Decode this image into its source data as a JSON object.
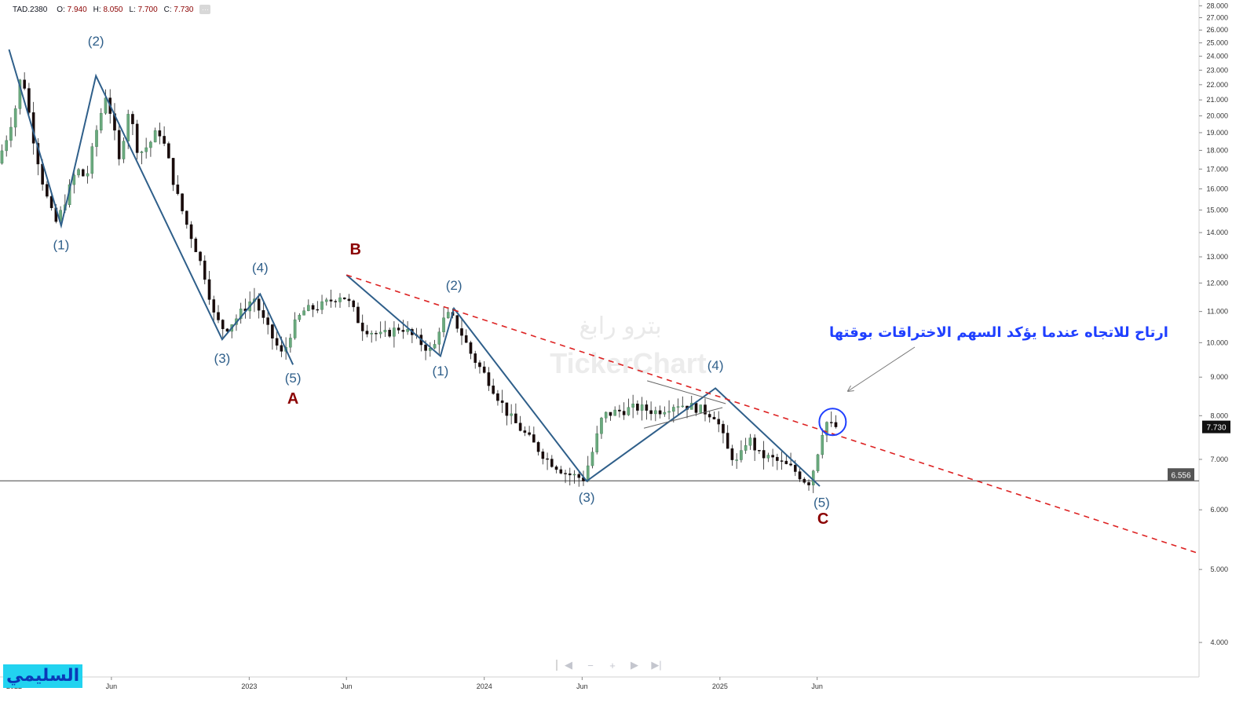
{
  "header": {
    "symbol": "TAD.2380",
    "open_label": "O:",
    "open": "7.940",
    "high_label": "H:",
    "high": "8.050",
    "low_label": "L:",
    "low": "7.700",
    "close_label": "C:",
    "close": "7.730",
    "more": "···"
  },
  "navigator": {
    "prev": "◀",
    "zoom_out": "−",
    "zoom_in": "+",
    "next": "▶",
    "end": "▶|"
  },
  "brand_badge": "السليمي",
  "watermark": {
    "arabic": "بترو رابغ",
    "latin": "TickerChart"
  },
  "annotation_text": "ارتاح للاتجاه عندما يؤكد السهم الاختراقات بوقتها",
  "colors": {
    "up": "#6aaa7e",
    "down": "#1a0a0a",
    "wave": "#2f5f8a",
    "trend": "#dd2222",
    "label": "#8b0000",
    "note": "#1f3fff"
  },
  "chart_data": {
    "type": "candlestick",
    "scale": "log",
    "ylim": [
      3.6,
      28.5
    ],
    "y_ticks": [
      "4.000",
      "5.000",
      "6.000",
      "7.000",
      "8.000",
      "9.000",
      "10.000",
      "11.000",
      "12.000",
      "13.000",
      "14.000",
      "15.000",
      "16.000",
      "17.000",
      "18.000",
      "19.000",
      "20.000",
      "21.000",
      "22.000",
      "23.000",
      "24.000",
      "25.000",
      "26.000",
      "27.000",
      "28.000"
    ],
    "x_ticks": [
      {
        "label": "2022",
        "date": "2022-01-01"
      },
      {
        "label": "Jun",
        "date": "2022-06-01"
      },
      {
        "label": "2023",
        "date": "2023-01-01"
      },
      {
        "label": "Jun",
        "date": "2023-06-01"
      },
      {
        "label": "2024",
        "date": "2024-01-01"
      },
      {
        "label": "Jun",
        "date": "2024-06-01"
      },
      {
        "label": "2025",
        "date": "2025-01-01"
      },
      {
        "label": "Jun",
        "date": "2025-06-01"
      }
    ],
    "xlim": [
      "2021-12-10",
      "2027-01-15"
    ],
    "last_price": "7.730",
    "support_level": "6.556",
    "support_value": 6.556,
    "price_path": [
      [
        "2021-12-13",
        17.3
      ],
      [
        "2021-12-28",
        18.8
      ],
      [
        "2022-01-10",
        20.5
      ],
      [
        "2022-01-20",
        23.0
      ],
      [
        "2022-02-05",
        19.0
      ],
      [
        "2022-02-20",
        16.5
      ],
      [
        "2022-03-05",
        15.0
      ],
      [
        "2022-03-15",
        14.4
      ],
      [
        "2022-03-30",
        15.6
      ],
      [
        "2022-04-15",
        17.0
      ],
      [
        "2022-04-30",
        16.5
      ],
      [
        "2022-05-15",
        19.0
      ],
      [
        "2022-05-30",
        21.3
      ],
      [
        "2022-06-08",
        20.0
      ],
      [
        "2022-06-20",
        17.4
      ],
      [
        "2022-07-05",
        20.5
      ],
      [
        "2022-07-20",
        17.8
      ],
      [
        "2022-08-05",
        18.3
      ],
      [
        "2022-08-20",
        19.2
      ],
      [
        "2022-09-01",
        18.0
      ],
      [
        "2022-09-15",
        16.0
      ],
      [
        "2022-10-01",
        14.5
      ],
      [
        "2022-10-15",
        13.5
      ],
      [
        "2022-11-01",
        12.2
      ],
      [
        "2022-11-15",
        10.8
      ],
      [
        "2022-12-01",
        10.4
      ],
      [
        "2022-12-20",
        10.8
      ],
      [
        "2023-01-15",
        11.5
      ],
      [
        "2023-02-01",
        10.6
      ],
      [
        "2023-02-20",
        9.9
      ],
      [
        "2023-03-01",
        9.6
      ],
      [
        "2023-03-15",
        10.4
      ],
      [
        "2023-04-01",
        11.0
      ],
      [
        "2023-05-01",
        11.2
      ],
      [
        "2023-06-01",
        11.6
      ],
      [
        "2023-06-15",
        11.2
      ],
      [
        "2023-07-01",
        10.5
      ],
      [
        "2023-08-01",
        10.2
      ],
      [
        "2023-09-01",
        10.5
      ],
      [
        "2023-10-01",
        10.0
      ],
      [
        "2023-10-20",
        9.7
      ],
      [
        "2023-11-01",
        10.6
      ],
      [
        "2023-11-15",
        10.9
      ],
      [
        "2023-12-01",
        10.4
      ],
      [
        "2023-12-20",
        9.6
      ],
      [
        "2024-01-15",
        8.9
      ],
      [
        "2024-02-15",
        8.0
      ],
      [
        "2024-03-15",
        7.5
      ],
      [
        "2024-04-15",
        7.0
      ],
      [
        "2024-05-15",
        6.7
      ],
      [
        "2024-06-10",
        6.6
      ],
      [
        "2024-06-25",
        7.2
      ],
      [
        "2024-07-10",
        8.0
      ],
      [
        "2024-08-01",
        8.1
      ],
      [
        "2024-09-01",
        8.2
      ],
      [
        "2024-10-01",
        8.1
      ],
      [
        "2024-11-01",
        8.3
      ],
      [
        "2024-12-01",
        8.2
      ],
      [
        "2025-01-01",
        8.0
      ],
      [
        "2025-01-20",
        7.2
      ],
      [
        "2025-02-05",
        6.9
      ],
      [
        "2025-02-20",
        7.5
      ],
      [
        "2025-03-10",
        7.1
      ],
      [
        "2025-04-01",
        7.0
      ],
      [
        "2025-05-01",
        6.8
      ],
      [
        "2025-05-25",
        6.5
      ],
      [
        "2025-06-05",
        6.9
      ],
      [
        "2025-06-15",
        7.6
      ],
      [
        "2025-06-25",
        7.9
      ],
      [
        "2025-07-01",
        7.73
      ]
    ],
    "waves": [
      {
        "name": "A",
        "points": [
          [
            "2021-12-24",
            24.5
          ],
          [
            "2022-03-15",
            14.3
          ],
          [
            "2022-05-08",
            22.6
          ],
          [
            "2022-11-20",
            10.1
          ],
          [
            "2023-01-18",
            11.6
          ],
          [
            "2023-03-10",
            9.35
          ]
        ]
      },
      {
        "name": "B-C",
        "points": [
          [
            "2023-06-01",
            12.3
          ],
          [
            "2023-10-25",
            9.6
          ],
          [
            "2023-11-15",
            11.1
          ],
          [
            "2024-06-08",
            6.55
          ],
          [
            "2024-12-25",
            8.7
          ],
          [
            "2025-06-05",
            6.45
          ]
        ]
      }
    ],
    "triangle": [
      [
        "2024-09-10",
        8.9
      ],
      [
        "2025-01-10",
        8.3
      ],
      [
        "2024-09-05",
        7.7
      ],
      [
        "2025-01-05",
        8.2
      ]
    ],
    "trendline": {
      "from": [
        "2023-06-01",
        12.3
      ],
      "to": [
        "2027-01-15",
        5.25
      ]
    },
    "labels": [
      {
        "text": "(2)",
        "date": "2022-05-08",
        "price": 24.8,
        "kind": "wave"
      },
      {
        "text": "(1)",
        "date": "2022-03-15",
        "price": 13.3,
        "kind": "wave"
      },
      {
        "text": "(3)",
        "date": "2022-11-20",
        "price": 9.4,
        "kind": "wave"
      },
      {
        "text": "(4)",
        "date": "2023-01-18",
        "price": 12.4,
        "kind": "wave"
      },
      {
        "text": "(5)",
        "date": "2023-03-10",
        "price": 8.85,
        "kind": "wave"
      },
      {
        "text": "A",
        "date": "2023-03-10",
        "price": 8.3,
        "kind": "major"
      },
      {
        "text": "B",
        "date": "2023-06-15",
        "price": 13.1,
        "kind": "major"
      },
      {
        "text": "(2)",
        "date": "2023-11-15",
        "price": 11.75,
        "kind": "wave"
      },
      {
        "text": "(1)",
        "date": "2023-10-25",
        "price": 9.05,
        "kind": "wave"
      },
      {
        "text": "(3)",
        "date": "2024-06-08",
        "price": 6.15,
        "kind": "wave"
      },
      {
        "text": "(4)",
        "date": "2024-12-25",
        "price": 9.2,
        "kind": "wave"
      },
      {
        "text": "(5)",
        "date": "2025-06-08",
        "price": 6.05,
        "kind": "wave"
      },
      {
        "text": "C",
        "date": "2025-06-10",
        "price": 5.75,
        "kind": "major"
      }
    ],
    "circle_marker": {
      "date": "2025-06-25",
      "price": 7.85
    }
  }
}
